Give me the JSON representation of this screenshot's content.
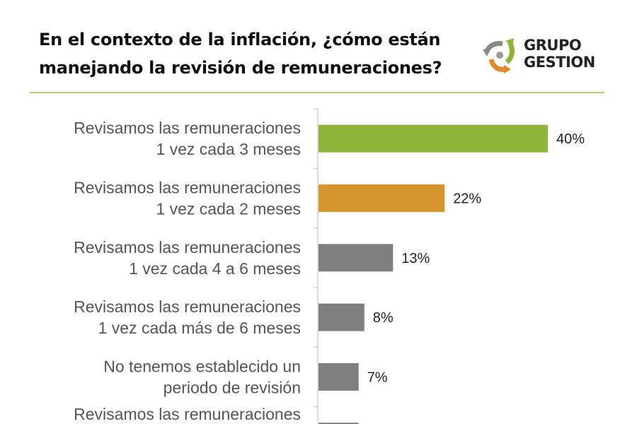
{
  "header": {
    "title_lines": [
      "En el contexto de la inflación, ¿cómo están",
      "manejando la revisión de remuneraciones?"
    ],
    "logo": {
      "line1": "GRUPO",
      "line2": "GESTION"
    }
  },
  "chart_data": {
    "type": "bar",
    "orientation": "horizontal",
    "title": "En el contexto de la inflación, ¿cómo están manejando la revisión de remuneraciones?",
    "categories": [
      [
        "Revisamos las remuneraciones",
        "1 vez cada 3 meses"
      ],
      [
        "Revisamos las remuneraciones",
        "1 vez cada 2 meses"
      ],
      [
        "Revisamos las remuneraciones",
        "1 vez cada 4 a 6 meses"
      ],
      [
        "Revisamos las remuneraciones",
        "1 vez cada más de 6 meses"
      ],
      [
        "No tenemos establecido un",
        "periodo de revisión"
      ],
      [
        "Revisamos las remuneraciones"
      ]
    ],
    "values": [
      40,
      22,
      13,
      8,
      7,
      7
    ],
    "data_labels": [
      "40%",
      "22%",
      "13%",
      "8%",
      "7%",
      ""
    ],
    "colors": [
      "#8db53a",
      "#d6952e",
      "#7f7f7f",
      "#7f7f7f",
      "#7f7f7f",
      "#7f7f7f"
    ],
    "unit": "%",
    "xlim": [
      0,
      40
    ],
    "grid": false,
    "legend": "none"
  }
}
